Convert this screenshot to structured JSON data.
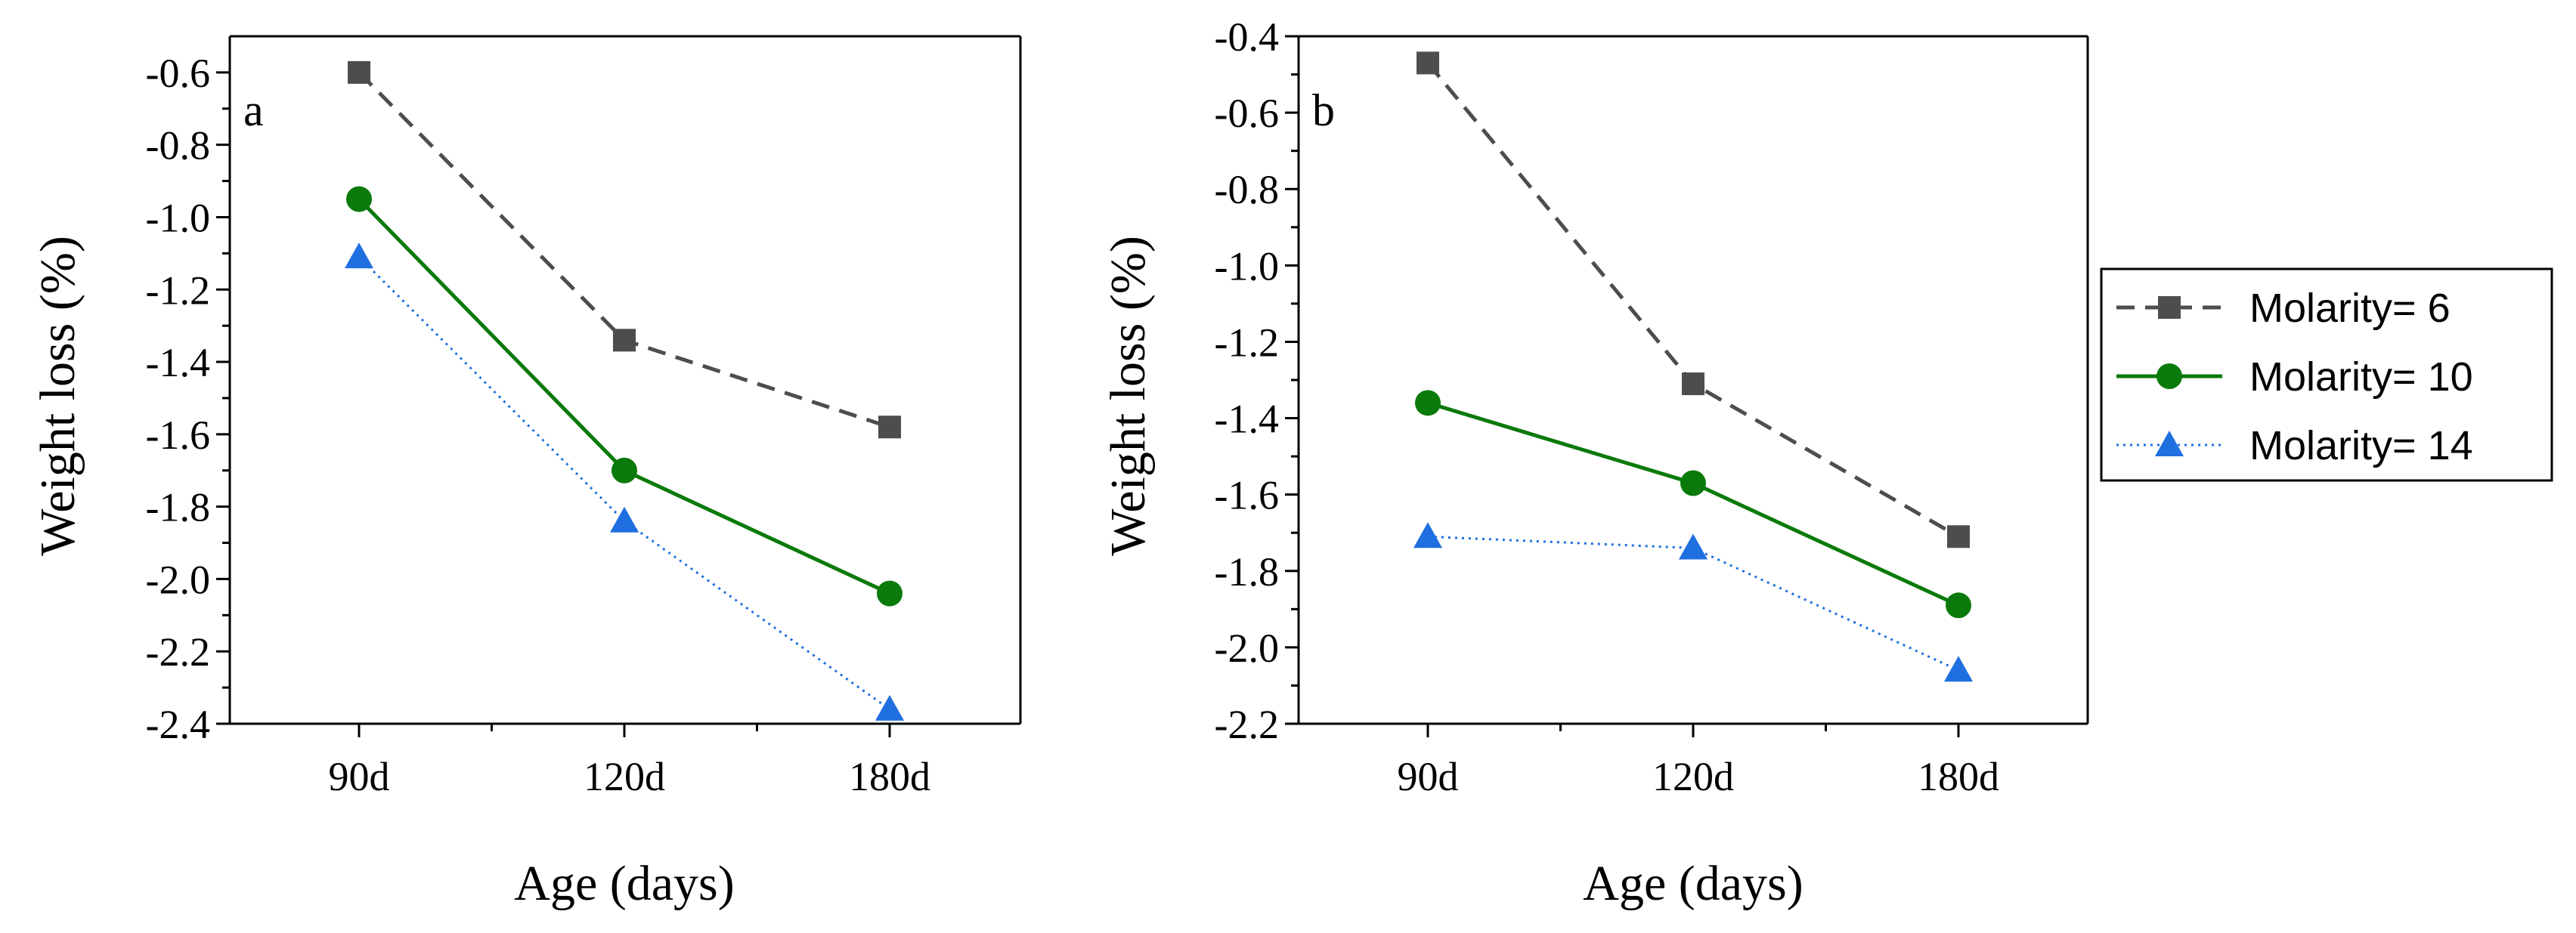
{
  "chart_data": [
    {
      "panel": "a",
      "type": "line",
      "categories": [
        "90d",
        "120d",
        "180d"
      ],
      "xlabel": "Age (days)",
      "ylabel": "Weight loss (%)",
      "ylim": [
        -2.4,
        -0.5
      ],
      "yticks": [
        -2.4,
        -2.2,
        -2.0,
        -1.8,
        -1.6,
        -1.4,
        -1.2,
        -1.0,
        -0.8,
        -0.6
      ],
      "ytick_labels": [
        "-2.4",
        "-2.2",
        "-2.0",
        "-1.8",
        "-1.6",
        "-1.4",
        "-1.2",
        "-1.0",
        "-0.8",
        "-0.6"
      ],
      "grid": false,
      "series": [
        {
          "name": "Molarity= 6",
          "values": [
            -0.6,
            -1.34,
            -1.58
          ],
          "color": "#4d4d4d",
          "marker": "square",
          "line": "dashed"
        },
        {
          "name": "Molarity= 10",
          "values": [
            -0.95,
            -1.7,
            -2.04
          ],
          "color": "#0a7a0a",
          "marker": "circle",
          "line": "solid"
        },
        {
          "name": "Molarity= 14",
          "values": [
            -1.11,
            -1.84,
            -2.36
          ],
          "color": "#1f6fe0",
          "marker": "triangle",
          "line": "dotted"
        }
      ]
    },
    {
      "panel": "b",
      "type": "line",
      "categories": [
        "90d",
        "120d",
        "180d"
      ],
      "xlabel": "Age (days)",
      "ylabel": "Weight loss (%)",
      "ylim": [
        -2.2,
        -0.4
      ],
      "yticks": [
        -2.2,
        -2.0,
        -1.8,
        -1.6,
        -1.4,
        -1.2,
        -1.0,
        -0.8,
        -0.6,
        -0.4
      ],
      "ytick_labels": [
        "-2.2",
        "-2.0",
        "-1.8",
        "-1.6",
        "-1.4",
        "-1.2",
        "-1.0",
        "-0.8",
        "-0.6",
        "-0.4"
      ],
      "grid": false,
      "series": [
        {
          "name": "Molarity= 6",
          "values": [
            -0.47,
            -1.31,
            -1.71
          ],
          "color": "#4d4d4d",
          "marker": "square",
          "line": "dashed"
        },
        {
          "name": "Molarity= 10",
          "values": [
            -1.36,
            -1.57,
            -1.89
          ],
          "color": "#0a7a0a",
          "marker": "circle",
          "line": "solid"
        },
        {
          "name": "Molarity= 14",
          "values": [
            -1.71,
            -1.74,
            -2.06
          ],
          "color": "#1f6fe0",
          "marker": "triangle",
          "line": "dotted"
        }
      ]
    }
  ],
  "legend": {
    "placement": "right",
    "entries": [
      {
        "label": "Molarity= 6",
        "color": "#4d4d4d",
        "marker": "square",
        "line": "dashed"
      },
      {
        "label": "Molarity= 10",
        "color": "#0a7a0a",
        "marker": "circle",
        "line": "solid"
      },
      {
        "label": "Molarity= 14",
        "color": "#1f6fe0",
        "marker": "triangle",
        "line": "dotted"
      }
    ]
  }
}
